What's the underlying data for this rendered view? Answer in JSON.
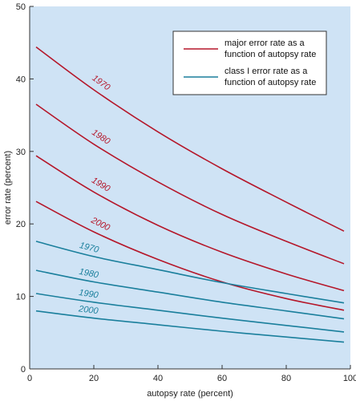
{
  "chart_data": {
    "type": "line",
    "xlabel": "autopsy rate (percent)",
    "ylabel": "error rate (percent)",
    "xlim": [
      0,
      100
    ],
    "ylim": [
      0,
      50
    ],
    "xticks": [
      "0",
      "20",
      "40",
      "60",
      "80",
      "100"
    ],
    "yticks": [
      "0",
      "10",
      "20",
      "30",
      "40",
      "50"
    ],
    "grid": false,
    "plot_background": "#cfe3f5",
    "legend_position": "top-right",
    "legend": [
      {
        "label_line1": "major error rate as a",
        "label_line2": "function of autopsy rate",
        "color": "#b5172a"
      },
      {
        "label_line1": "class I error rate as a",
        "label_line2": "function of autopsy rate",
        "color": "#1a7f9c"
      }
    ],
    "series": [
      {
        "group": "major",
        "year": "1970",
        "color": "#b5172a",
        "x": [
          2,
          20,
          40,
          60,
          80,
          98
        ],
        "y": [
          44.4,
          38.5,
          32.7,
          27.6,
          23.0,
          19.0
        ]
      },
      {
        "group": "major",
        "year": "1980",
        "color": "#b5172a",
        "x": [
          2,
          20,
          40,
          60,
          80,
          98
        ],
        "y": [
          36.5,
          31.0,
          25.8,
          21.3,
          17.6,
          14.5
        ]
      },
      {
        "group": "major",
        "year": "1990",
        "color": "#b5172a",
        "x": [
          2,
          20,
          40,
          60,
          80,
          98
        ],
        "y": [
          29.4,
          24.4,
          19.8,
          16.1,
          13.1,
          10.8
        ]
      },
      {
        "group": "major",
        "year": "2000",
        "color": "#b5172a",
        "x": [
          2,
          20,
          40,
          60,
          80,
          98
        ],
        "y": [
          23.1,
          18.9,
          15.1,
          12.0,
          9.7,
          8.1
        ]
      },
      {
        "group": "class I",
        "year": "1970",
        "color": "#1a7f9c",
        "x": [
          2,
          20,
          40,
          60,
          80,
          98
        ],
        "y": [
          17.6,
          15.5,
          13.7,
          11.9,
          10.4,
          9.1
        ]
      },
      {
        "group": "class I",
        "year": "1980",
        "color": "#1a7f9c",
        "x": [
          2,
          20,
          40,
          60,
          80,
          98
        ],
        "y": [
          13.6,
          12.0,
          10.6,
          9.2,
          8.0,
          6.9
        ]
      },
      {
        "group": "class I",
        "year": "1990",
        "color": "#1a7f9c",
        "x": [
          2,
          20,
          40,
          60,
          80,
          98
        ],
        "y": [
          10.4,
          9.2,
          8.1,
          7.0,
          6.0,
          5.1
        ]
      },
      {
        "group": "class I",
        "year": "2000",
        "color": "#1a7f9c",
        "x": [
          2,
          20,
          40,
          60,
          80,
          98
        ],
        "y": [
          8.0,
          7.0,
          6.1,
          5.2,
          4.4,
          3.7
        ]
      }
    ]
  }
}
